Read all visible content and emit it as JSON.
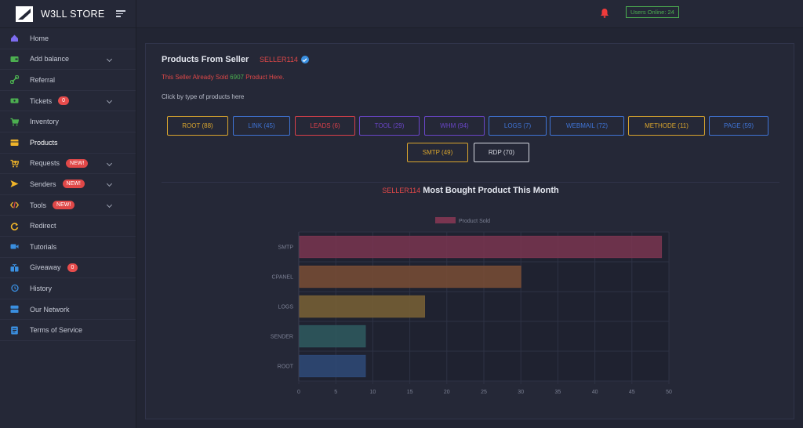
{
  "brand": {
    "title": "W3LL STORE"
  },
  "sidebar": {
    "items": [
      {
        "label": "Home",
        "icon": "home-icon",
        "color": "#7d6cf0",
        "chevron": false
      },
      {
        "label": "Add balance",
        "icon": "wallet-icon",
        "color": "#4caf50",
        "chevron": true
      },
      {
        "label": "Referral",
        "icon": "link-icon",
        "color": "#4caf50",
        "chevron": false
      },
      {
        "label": "Tickets",
        "icon": "ticket-icon",
        "color": "#4caf50",
        "badge": "0",
        "chevron": true
      },
      {
        "label": "Inventory",
        "icon": "cart-icon",
        "color": "#4caf50",
        "chevron": false
      },
      {
        "label": "Products",
        "icon": "box-icon",
        "color": "#f0b429",
        "chevron": false
      },
      {
        "label": "Requests",
        "icon": "cart-plus-icon",
        "color": "#f0b429",
        "badge_new": "NEW!",
        "chevron": true
      },
      {
        "label": "Senders",
        "icon": "send-icon",
        "color": "#f0b429",
        "badge_new": "NEW!",
        "chevron": true
      },
      {
        "label": "Tools",
        "icon": "code-icon",
        "color": "#f0b429",
        "badge_new": "NEW!",
        "chevron": true
      },
      {
        "label": "Redirect",
        "icon": "refresh-icon",
        "color": "#f0b429",
        "chevron": false
      },
      {
        "label": "Tutorials",
        "icon": "video-icon",
        "color": "#3a8fe0",
        "chevron": false
      },
      {
        "label": "Giveaway",
        "icon": "gift-icon",
        "color": "#3a8fe0",
        "badge": "0",
        "chevron": false
      },
      {
        "label": "History",
        "icon": "history-icon",
        "color": "#3a8fe0",
        "chevron": false
      },
      {
        "label": "Our Network",
        "icon": "server-icon",
        "color": "#3a8fe0",
        "chevron": false
      },
      {
        "label": "Terms of Service",
        "icon": "document-icon",
        "color": "#3a8fe0",
        "chevron": false
      }
    ]
  },
  "topbar": {
    "online": "Users Online: 24"
  },
  "card": {
    "header": "Products From Seller",
    "seller": "SELLER114",
    "sold_prefix": "This Seller Already Sold",
    "sold_count": "6907",
    "sold_suffix": "Product Here.",
    "click_hint": "Click by type of products here"
  },
  "product_buttons": [
    {
      "label": "ROOT (88)",
      "color": "#d9a52e"
    },
    {
      "label": "LINK (45)",
      "color": "#3f74d6"
    },
    {
      "label": "LEADS (6)",
      "color": "#d9404a"
    },
    {
      "label": "TOOL (29)",
      "color": "#6a46c8"
    },
    {
      "label": "WHM (94)",
      "color": "#6a46c8"
    },
    {
      "label": "LOGS (7)",
      "color": "#3f74d6"
    },
    {
      "label": "WEBMAIL (72)",
      "color": "#3f74d6"
    },
    {
      "label": "METHODE (11)",
      "color": "#d9a52e"
    },
    {
      "label": "PAGE (59)",
      "color": "#3f74d6"
    },
    {
      "label": "SMTP (49)",
      "color": "#d9a52e"
    },
    {
      "label": "RDP (70)",
      "color": "#d6d8e0"
    }
  ],
  "chart_title": {
    "seller": "SELLER114",
    "text": "Most Bought Product This Month"
  },
  "chart_data": {
    "type": "bar",
    "orientation": "horizontal",
    "categories": [
      "SMTP",
      "CPANEL",
      "LOGS",
      "SENDER",
      "ROOT"
    ],
    "series": [
      {
        "name": "Product Sold",
        "values": [
          49,
          30,
          17,
          9,
          9
        ]
      }
    ],
    "bar_colors": [
      "#7a3550",
      "#7a4e35",
      "#7a6235",
      "#2f5a5f",
      "#2f4a78"
    ],
    "xlim": [
      0,
      50
    ],
    "xticks": [
      0,
      5,
      10,
      15,
      20,
      25,
      30,
      35,
      40,
      45,
      50
    ],
    "grid": true,
    "legend": "top"
  }
}
